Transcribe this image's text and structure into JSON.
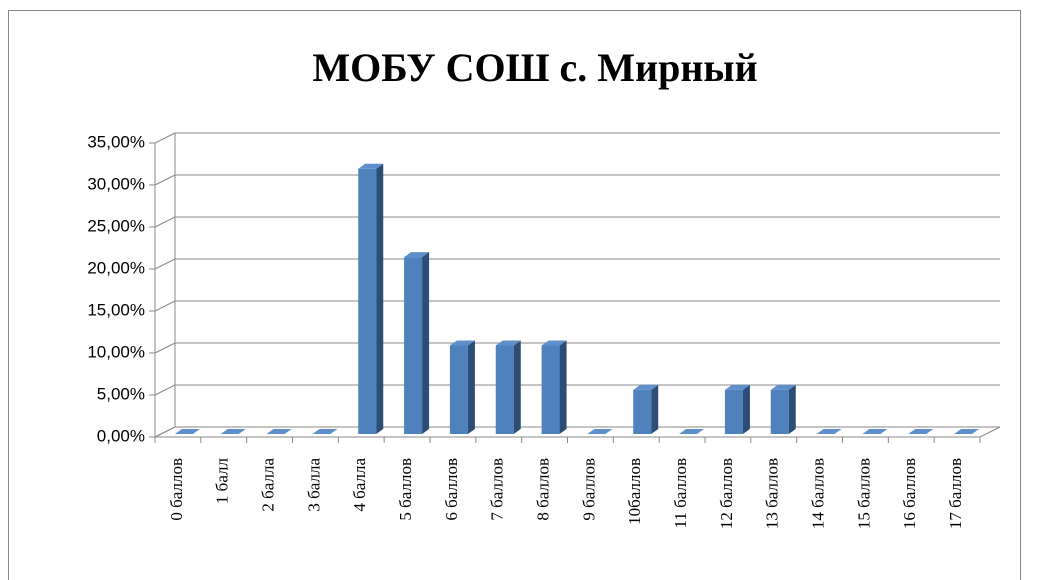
{
  "chart_data": {
    "type": "bar3d",
    "title": "МОБУ СОШ с. Мирный",
    "categories": [
      "0 баллов",
      "1 балл",
      "2 балла",
      "3 балла",
      "4 балла",
      "5 баллов",
      "6 баллов",
      "7 баллов",
      "8 баллов",
      "9 баллов",
      "10баллов",
      "11 баллов",
      "12 баллов",
      "13 баллов",
      "14 баллов",
      "15 баллов",
      "16 баллов",
      "17 баллов"
    ],
    "values": [
      0,
      0,
      0,
      0,
      31.58,
      21.05,
      10.53,
      10.53,
      10.53,
      0,
      5.26,
      0,
      5.26,
      5.26,
      0,
      0,
      0,
      0
    ],
    "color": "#4f81bd",
    "ylim": [
      0,
      35
    ],
    "yticks": [
      {
        "value": 0,
        "label": "0,00%"
      },
      {
        "value": 5,
        "label": "5,00%"
      },
      {
        "value": 10,
        "label": "10,00%"
      },
      {
        "value": 15,
        "label": "15,00%"
      },
      {
        "value": 20,
        "label": "20,00%"
      },
      {
        "value": 25,
        "label": "25,00%"
      },
      {
        "value": 30,
        "label": "30,00%"
      },
      {
        "value": 35,
        "label": "35,00%"
      }
    ],
    "grid": true
  }
}
